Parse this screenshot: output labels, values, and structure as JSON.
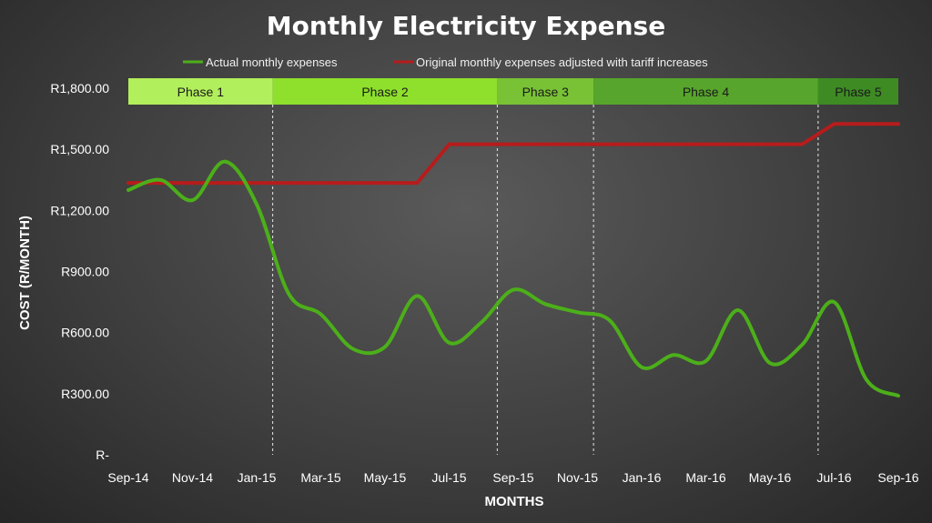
{
  "chart_data": {
    "type": "line",
    "title": "Monthly Electricity Expense",
    "xlabel": "MONTHS",
    "ylabel": "COST (R/MONTH)",
    "ylim": [
      0,
      1800
    ],
    "yticks": [
      {
        "value": 0,
        "label": "R-"
      },
      {
        "value": 300,
        "label": "R300.00"
      },
      {
        "value": 600,
        "label": "R600.00"
      },
      {
        "value": 900,
        "label": "R900.00"
      },
      {
        "value": 1200,
        "label": "R1,200.00"
      },
      {
        "value": 1500,
        "label": "R1,500.00"
      },
      {
        "value": 1800,
        "label": "R1,800.00"
      }
    ],
    "categories": [
      "Sep-14",
      "Oct-14",
      "Nov-14",
      "Dec-14",
      "Jan-15",
      "Feb-15",
      "Mar-15",
      "Apr-15",
      "May-15",
      "Jun-15",
      "Jul-15",
      "Aug-15",
      "Sep-15",
      "Oct-15",
      "Nov-15",
      "Dec-15",
      "Jan-16",
      "Feb-16",
      "Mar-16",
      "Apr-16",
      "May-16",
      "Jun-16",
      "Jul-16",
      "Aug-16",
      "Sep-16"
    ],
    "tick_labels": [
      "Sep-14",
      "Nov-14",
      "Jan-15",
      "Mar-15",
      "May-15",
      "Jul-15",
      "Sep-15",
      "Nov-15",
      "Jan-16",
      "Mar-16",
      "May-16",
      "Jul-16",
      "Sep-16"
    ],
    "series": [
      {
        "name": "Actual monthly expenses",
        "color": "#4caf1a",
        "values": [
          1300,
          1350,
          1250,
          1440,
          1230,
          790,
          690,
          520,
          530,
          780,
          550,
          650,
          810,
          740,
          700,
          660,
          430,
          490,
          460,
          710,
          450,
          540,
          750,
          370,
          290
        ]
      },
      {
        "name": "Original monthly expenses adjusted with tariff increases",
        "color": "#b71c1c",
        "values": [
          1335,
          1335,
          1335,
          1335,
          1335,
          1335,
          1335,
          1335,
          1335,
          1335,
          1525,
          1525,
          1525,
          1525,
          1525,
          1525,
          1525,
          1525,
          1525,
          1525,
          1525,
          1525,
          1625,
          1625,
          1625
        ]
      }
    ],
    "phases": [
      {
        "label": "Phase 1",
        "start": 0,
        "end": 5,
        "color": "#b2ef5c"
      },
      {
        "label": "Phase 2",
        "start": 5,
        "end": 12,
        "color": "#8ee02c"
      },
      {
        "label": "Phase 3",
        "start": 12,
        "end": 15,
        "color": "#79c235"
      },
      {
        "label": "Phase 4",
        "start": 15,
        "end": 22,
        "color": "#57a52c"
      },
      {
        "label": "Phase 5",
        "start": 22,
        "end": 24,
        "color": "#3e8b24"
      }
    ],
    "grid": false,
    "legend_position": "top"
  }
}
